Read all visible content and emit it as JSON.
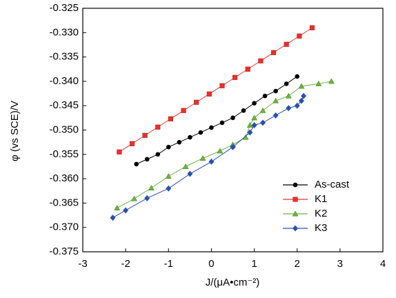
{
  "chart_data": {
    "type": "line",
    "x_label": "J/(μA•cm⁻²)",
    "y_label": "φ (vs SCE)/V",
    "xlim": [
      -3,
      4
    ],
    "xticks": [
      -3,
      -2,
      -1,
      0,
      1,
      2,
      3,
      4
    ],
    "ylim": [
      -0.375,
      -0.325
    ],
    "yticks": [
      {
        "value": -0.375,
        "label": "-0.375"
      },
      {
        "value": -0.37,
        "label": "-0.370"
      },
      {
        "value": -0.365,
        "label": "-0.365"
      },
      {
        "value": -0.36,
        "label": "-0.360"
      },
      {
        "value": -0.355,
        "label": "-0.355"
      },
      {
        "value": -0.35,
        "label": "-0.350"
      },
      {
        "value": -0.345,
        "label": "-0.345"
      },
      {
        "value": -0.34,
        "label": "-0.340"
      },
      {
        "value": -0.335,
        "label": "-0.335"
      },
      {
        "value": -0.33,
        "label": "-0.330"
      },
      {
        "value": -0.325,
        "label": "-0.325"
      }
    ],
    "legend_position": "lower right",
    "series": [
      {
        "name": "As-cast",
        "color": "#000000",
        "marker": "circle",
        "x": [
          -1.75,
          -1.5,
          -1.25,
          -1.0,
          -0.75,
          -0.5,
          -0.25,
          0,
          0.25,
          0.5,
          0.75,
          1.0,
          1.25,
          1.5,
          1.75,
          2.0
        ],
        "values": [
          -0.357,
          -0.356,
          -0.355,
          -0.3535,
          -0.3525,
          -0.3515,
          -0.3505,
          -0.3495,
          -0.3485,
          -0.3475,
          -0.346,
          -0.3445,
          -0.343,
          -0.342,
          -0.3405,
          -0.339
        ]
      },
      {
        "name": "K1",
        "color": "#e8312a",
        "marker": "square",
        "x": [
          -2.15,
          -1.85,
          -1.55,
          -1.25,
          -0.95,
          -0.65,
          -0.35,
          -0.05,
          0.25,
          0.55,
          0.85,
          1.15,
          1.45,
          1.75,
          2.05,
          2.35
        ],
        "values": [
          -0.3545,
          -0.3528,
          -0.3511,
          -0.3494,
          -0.3477,
          -0.346,
          -0.3443,
          -0.3426,
          -0.3409,
          -0.3392,
          -0.3375,
          -0.3358,
          -0.3341,
          -0.3324,
          -0.3307,
          -0.329
        ]
      },
      {
        "name": "K2",
        "color": "#6cb33f",
        "marker": "triangle",
        "x": [
          -2.2,
          -1.8,
          -1.4,
          -1.0,
          -0.6,
          -0.2,
          0.2,
          0.5,
          0.8,
          0.9,
          1.0,
          1.2,
          1.5,
          1.8,
          2.1,
          2.5,
          2.8
        ],
        "values": [
          -0.366,
          -0.3641,
          -0.3619,
          -0.3595,
          -0.3575,
          -0.3558,
          -0.3543,
          -0.353,
          -0.3515,
          -0.349,
          -0.3475,
          -0.346,
          -0.344,
          -0.343,
          -0.341,
          -0.3405,
          -0.34
        ]
      },
      {
        "name": "K3",
        "color": "#2b4fb0",
        "marker": "diamond",
        "x": [
          -2.3,
          -2.0,
          -1.5,
          -1.0,
          -0.5,
          0,
          0.5,
          0.9,
          1.0,
          1.2,
          1.5,
          1.8,
          2.0,
          2.1,
          2.15
        ],
        "values": [
          -0.368,
          -0.3665,
          -0.364,
          -0.362,
          -0.359,
          -0.3565,
          -0.3535,
          -0.3505,
          -0.349,
          -0.3485,
          -0.347,
          -0.3455,
          -0.345,
          -0.344,
          -0.343
        ]
      }
    ]
  }
}
